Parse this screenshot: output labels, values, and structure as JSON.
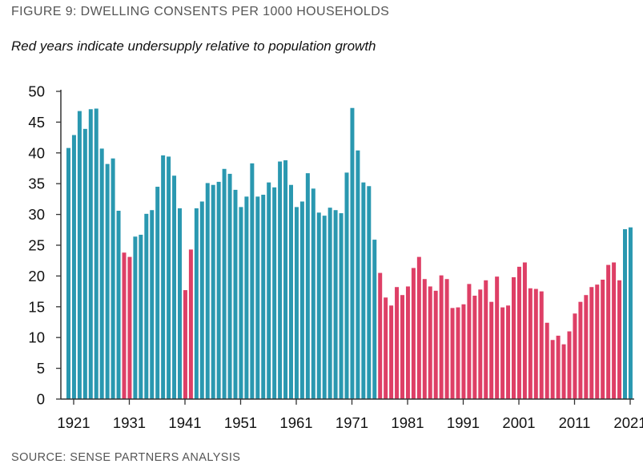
{
  "title": "FIGURE 9: DWELLING CONSENTS PER 1000 HOUSEHOLDS",
  "subtitle": "Red years indicate undersupply relative to population growth",
  "source": "SOURCE: SENSE PARTNERS ANALYSIS",
  "colors": {
    "adequate": "#2a98b0",
    "undersupply": "#de3f66",
    "axis": "#333333"
  },
  "chart_data": {
    "type": "bar",
    "title": "FIGURE 9: DWELLING CONSENTS PER 1000 HOUSEHOLDS",
    "xlabel": "",
    "ylabel": "",
    "ylim": [
      0,
      50
    ],
    "yticks": [
      "0",
      "5",
      "10",
      "15",
      "20",
      "25",
      "30",
      "35",
      "40",
      "45",
      "50"
    ],
    "xticks": [
      "1921",
      "1931",
      "1941",
      "1951",
      "1961",
      "1971",
      "1981",
      "1991",
      "2001",
      "2011",
      "2021"
    ],
    "grid": false,
    "legend": "none",
    "categories": [
      1921,
      1922,
      1923,
      1924,
      1925,
      1926,
      1927,
      1928,
      1929,
      1930,
      1931,
      1932,
      1933,
      1934,
      1935,
      1936,
      1937,
      1938,
      1939,
      1940,
      1941,
      1942,
      1943,
      1944,
      1945,
      1946,
      1947,
      1948,
      1949,
      1950,
      1951,
      1952,
      1953,
      1954,
      1955,
      1956,
      1957,
      1958,
      1959,
      1960,
      1961,
      1962,
      1963,
      1964,
      1965,
      1966,
      1967,
      1968,
      1969,
      1970,
      1971,
      1972,
      1973,
      1974,
      1975,
      1976,
      1977,
      1978,
      1979,
      1980,
      1981,
      1982,
      1983,
      1984,
      1985,
      1986,
      1987,
      1988,
      1989,
      1990,
      1991,
      1992,
      1993,
      1994,
      1995,
      1996,
      1997,
      1998,
      1999,
      2000,
      2001,
      2002,
      2003,
      2004,
      2005,
      2006,
      2007,
      2008,
      2009,
      2010,
      2011,
      2012,
      2013,
      2014,
      2015,
      2016,
      2017,
      2018,
      2019,
      2020,
      2021,
      2022
    ],
    "values": [
      40.8,
      42.9,
      46.8,
      43.9,
      47.1,
      47.2,
      40.7,
      38.2,
      39.1,
      30.6,
      23.8,
      23.1,
      26.4,
      26.7,
      30.1,
      30.7,
      34.5,
      39.6,
      39.4,
      36.3,
      31.0,
      17.7,
      24.3,
      31.0,
      32.1,
      35.1,
      34.8,
      35.3,
      37.4,
      36.6,
      34.0,
      31.2,
      32.9,
      38.3,
      32.9,
      33.2,
      35.2,
      34.4,
      38.6,
      38.8,
      34.8,
      31.2,
      32.1,
      36.7,
      34.2,
      30.3,
      29.8,
      31.1,
      30.7,
      30.2,
      36.8,
      47.3,
      40.4,
      35.2,
      34.6,
      25.9,
      20.5,
      16.5,
      15.2,
      18.2,
      16.9,
      18.3,
      21.3,
      23.1,
      19.5,
      18.3,
      17.6,
      20.1,
      19.5,
      14.8,
      14.9,
      15.4,
      18.7,
      16.8,
      17.8,
      19.3,
      15.8,
      19.9,
      14.9,
      15.2,
      19.8,
      21.5,
      22.2,
      18.0,
      17.9,
      17.5,
      12.4,
      9.6,
      10.3,
      8.9,
      11.0,
      13.9,
      15.8,
      16.9,
      18.2,
      18.6,
      19.4,
      21.8,
      22.2,
      19.3,
      27.6,
      27.9
    ],
    "undersupply_years": [
      1931,
      1932,
      1942,
      1943,
      1977,
      1978,
      1979,
      1980,
      1981,
      1982,
      1983,
      1984,
      1985,
      1986,
      1987,
      1988,
      1989,
      1990,
      1991,
      1992,
      1993,
      1994,
      1995,
      1996,
      1997,
      1998,
      1999,
      2000,
      2001,
      2002,
      2003,
      2004,
      2005,
      2006,
      2007,
      2008,
      2009,
      2010,
      2011,
      2012,
      2013,
      2014,
      2015,
      2016,
      2017,
      2018,
      2019,
      2020
    ]
  }
}
